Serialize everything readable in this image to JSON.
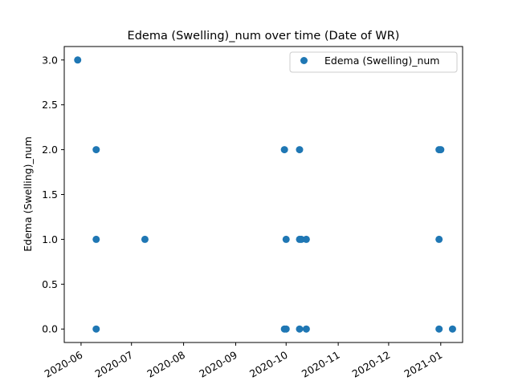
{
  "chart_data": {
    "type": "scatter",
    "title": "Edema (Swelling)_num over time (Date of WR)",
    "xlabel": "",
    "ylabel": "Edema (Swelling)_num",
    "x_type": "date",
    "xlim": [
      "2020-05-22",
      "2021-01-14"
    ],
    "ylim": [
      -0.15,
      3.15
    ],
    "xticks": [
      "2020-06",
      "2020-07",
      "2020-08",
      "2020-09",
      "2020-10",
      "2020-11",
      "2020-12",
      "2021-01"
    ],
    "yticks": [
      "0.0",
      "0.5",
      "1.0",
      "1.5",
      "2.0",
      "2.5",
      "3.0"
    ],
    "grid": false,
    "legend_position": "top-right",
    "series": [
      {
        "name": "Edema (Swelling)_num",
        "color": "#1f77b4",
        "marker": "circle",
        "points": [
          {
            "x": "2020-05-30",
            "y": 3
          },
          {
            "x": "2020-06-10",
            "y": 2
          },
          {
            "x": "2020-06-10",
            "y": 1
          },
          {
            "x": "2020-06-10",
            "y": 0
          },
          {
            "x": "2020-07-09",
            "y": 1
          },
          {
            "x": "2020-09-30",
            "y": 2
          },
          {
            "x": "2020-10-01",
            "y": 1
          },
          {
            "x": "2020-09-30",
            "y": 0
          },
          {
            "x": "2020-10-01",
            "y": 0
          },
          {
            "x": "2020-10-09",
            "y": 2
          },
          {
            "x": "2020-10-09",
            "y": 1
          },
          {
            "x": "2020-10-10",
            "y": 1
          },
          {
            "x": "2020-10-13",
            "y": 1
          },
          {
            "x": "2020-10-09",
            "y": 0
          },
          {
            "x": "2020-10-13",
            "y": 0
          },
          {
            "x": "2020-12-31",
            "y": 2
          },
          {
            "x": "2021-01-01",
            "y": 2
          },
          {
            "x": "2020-12-31",
            "y": 1
          },
          {
            "x": "2020-12-31",
            "y": 0
          },
          {
            "x": "2021-01-08",
            "y": 0
          }
        ]
      }
    ]
  }
}
